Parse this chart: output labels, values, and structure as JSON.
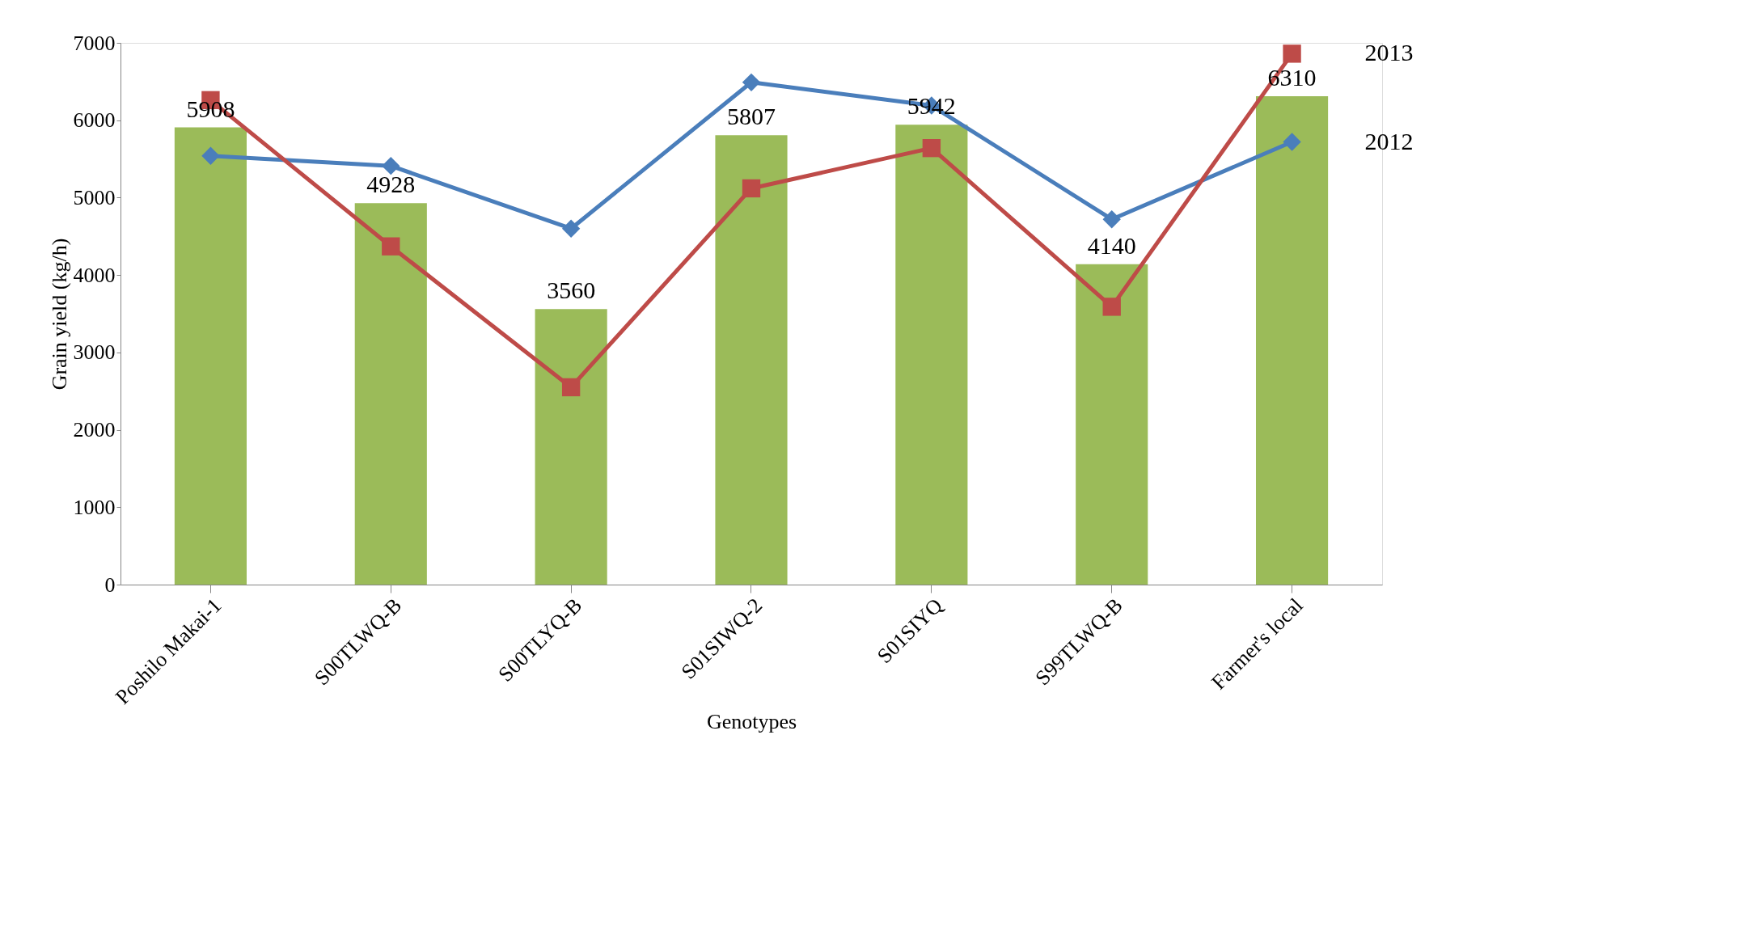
{
  "chart_data": {
    "type": "bar",
    "xlabel": "Genotypes",
    "ylabel": "Grain yield (kg/h)",
    "categories": [
      "Poshilo Makai-1",
      "S00TLWQ-B",
      "S00TLYQ-B",
      "S01SIWQ-2",
      "S01SIYQ",
      "S99TLWQ-B",
      "Farmer's local"
    ],
    "series": [
      {
        "color": "#9bbb59",
        "values": [
          5908,
          4928,
          3560,
          5807,
          5942,
          4140,
          6310
        ],
        "value_labels": [
          "5908",
          "4928",
          "3560",
          "5807",
          "5942",
          "4140",
          "6310"
        ]
      },
      {
        "type": "line",
        "name": "2012",
        "color": "#4a7ebb",
        "marker": "diamond",
        "values": [
          5540,
          5410,
          4600,
          6490,
          6190,
          4720,
          5720
        ]
      },
      {
        "type": "line",
        "name": "2013",
        "color": "#be4b48",
        "marker": "square",
        "values": [
          6260,
          4370,
          2550,
          5120,
          5640,
          3590,
          6860
        ]
      }
    ],
    "ylim": [
      0,
      7000
    ],
    "yticks": [
      0,
      1000,
      2000,
      3000,
      4000,
      5000,
      6000,
      7000
    ]
  }
}
